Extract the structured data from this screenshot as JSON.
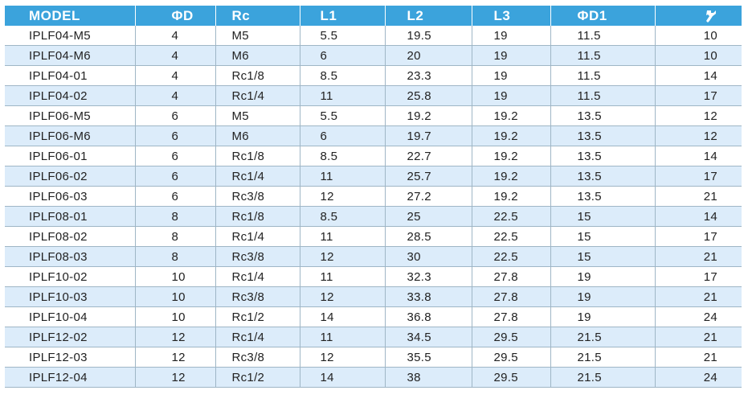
{
  "table": {
    "headers": [
      "MODEL",
      "ΦD",
      "Rc",
      "L1",
      "L2",
      "L3",
      "ΦD1"
    ],
    "last_header_icon": "wrench-icon",
    "rows": [
      [
        "IPLF04-M5",
        "4",
        "M5",
        "5.5",
        "19.5",
        "19",
        "11.5",
        "10"
      ],
      [
        "IPLF04-M6",
        "4",
        "M6",
        "6",
        "20",
        "19",
        "11.5",
        "10"
      ],
      [
        "IPLF04-01",
        "4",
        "Rc1/8",
        "8.5",
        "23.3",
        "19",
        "11.5",
        "14"
      ],
      [
        "IPLF04-02",
        "4",
        "Rc1/4",
        "11",
        "25.8",
        "19",
        "11.5",
        "17"
      ],
      [
        "IPLF06-M5",
        "6",
        "M5",
        "5.5",
        "19.2",
        "19.2",
        "13.5",
        "12"
      ],
      [
        "IPLF06-M6",
        "6",
        "M6",
        "6",
        "19.7",
        "19.2",
        "13.5",
        "12"
      ],
      [
        "IPLF06-01",
        "6",
        "Rc1/8",
        "8.5",
        "22.7",
        "19.2",
        "13.5",
        "14"
      ],
      [
        "IPLF06-02",
        "6",
        "Rc1/4",
        "11",
        "25.7",
        "19.2",
        "13.5",
        "17"
      ],
      [
        "IPLF06-03",
        "6",
        "Rc3/8",
        "12",
        "27.2",
        "19.2",
        "13.5",
        "21"
      ],
      [
        "IPLF08-01",
        "8",
        "Rc1/8",
        "8.5",
        "25",
        "22.5",
        "15",
        "14"
      ],
      [
        "IPLF08-02",
        "8",
        "Rc1/4",
        "11",
        "28.5",
        "22.5",
        "15",
        "17"
      ],
      [
        "IPLF08-03",
        "8",
        "Rc3/8",
        "12",
        "30",
        "22.5",
        "15",
        "21"
      ],
      [
        "IPLF10-02",
        "10",
        "Rc1/4",
        "11",
        "32.3",
        "27.8",
        "19",
        "17"
      ],
      [
        "IPLF10-03",
        "10",
        "Rc3/8",
        "12",
        "33.8",
        "27.8",
        "19",
        "21"
      ],
      [
        "IPLF10-04",
        "10",
        "Rc1/2",
        "14",
        "36.8",
        "27.8",
        "19",
        "24"
      ],
      [
        "IPLF12-02",
        "12",
        "Rc1/4",
        "11",
        "34.5",
        "29.5",
        "21.5",
        "21"
      ],
      [
        "IPLF12-03",
        "12",
        "Rc3/8",
        "12",
        "35.5",
        "29.5",
        "21.5",
        "21"
      ],
      [
        "IPLF12-04",
        "12",
        "Rc1/2",
        "14",
        "38",
        "29.5",
        "21.5",
        "24"
      ]
    ]
  },
  "colors": {
    "header_bg": "#3ba3dc",
    "stripe_bg": "#dcecfa",
    "border": "#9fb6c6"
  }
}
